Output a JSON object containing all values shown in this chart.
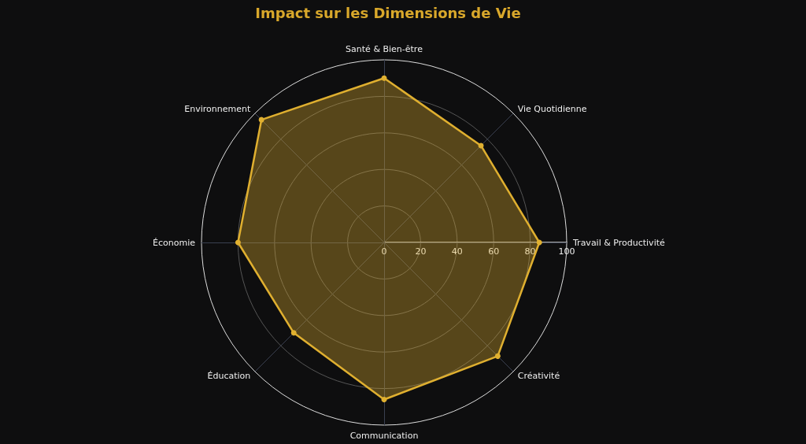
{
  "chart_data": {
    "type": "radar",
    "title": "Impact sur les Dimensions de Vie",
    "categories": [
      "Santé & Bien-être",
      "Vie Quotidienne",
      "Travail & Productivité",
      "Créativité",
      "Communication",
      "Éducation",
      "Économie",
      "Environnement"
    ],
    "series": [
      {
        "color": "#e0b030",
        "values": [
          90,
          75,
          85,
          88,
          86,
          70,
          80,
          95
        ]
      }
    ],
    "ylim": [
      0,
      100
    ],
    "yticks": [
      0,
      20,
      40,
      60,
      80,
      100
    ],
    "grid": true,
    "marker": "circle"
  }
}
